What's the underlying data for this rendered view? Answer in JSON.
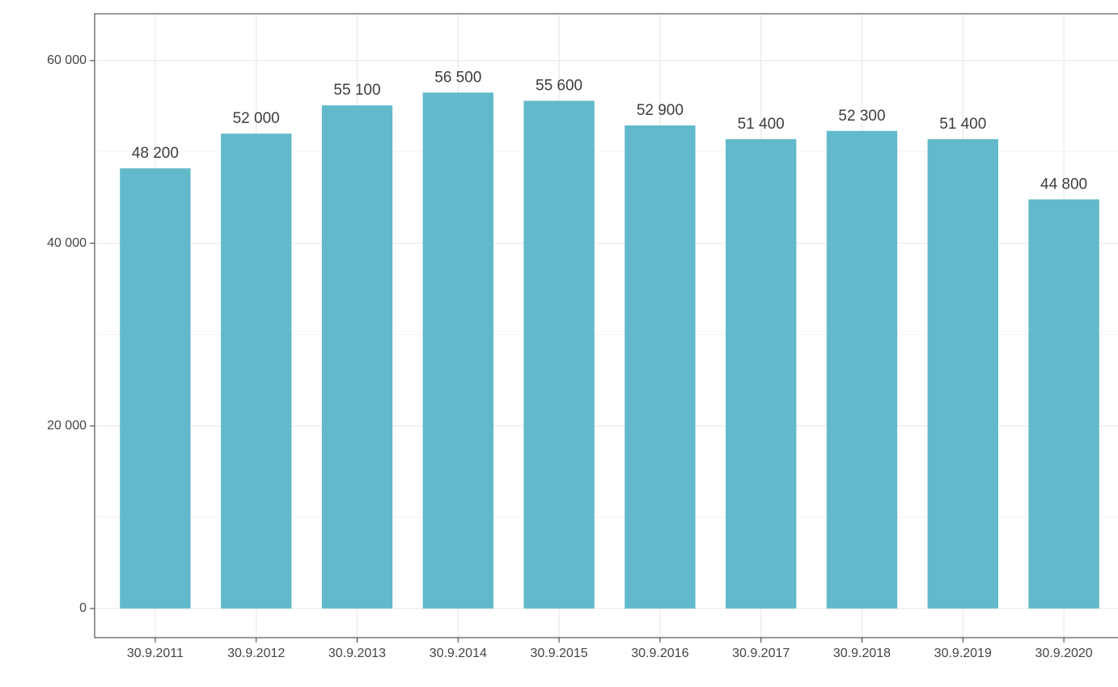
{
  "chart_data": {
    "type": "bar",
    "categories": [
      "30.9.2011",
      "30.9.2012",
      "30.9.2013",
      "30.9.2014",
      "30.9.2015",
      "30.9.2016",
      "30.9.2017",
      "30.9.2018",
      "30.9.2019",
      "30.9.2020"
    ],
    "values": [
      48200,
      52000,
      55100,
      56500,
      55600,
      52900,
      51400,
      52300,
      51400,
      44800
    ],
    "value_labels": [
      "48 200",
      "52 000",
      "55 100",
      "56 500",
      "55 600",
      "52 900",
      "51 400",
      "52 300",
      "51 400",
      "44 800"
    ],
    "color": "#62b9cb",
    "ylim": [
      -3190,
      65130
    ],
    "yticks": [
      0,
      {
        "value": 20000,
        "label": "20 000"
      },
      {
        "value": 40000,
        "label": "40 000"
      },
      {
        "value": 60000,
        "label": "60 000"
      }
    ],
    "minor_yticks": [
      10000,
      30000,
      50000
    ],
    "grid": true
  }
}
